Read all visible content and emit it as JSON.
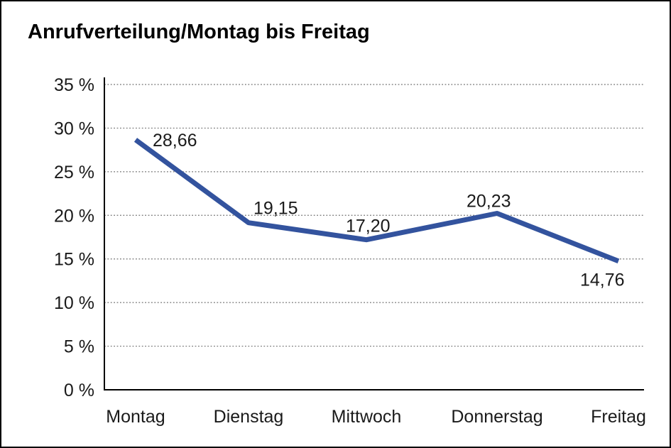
{
  "window": {
    "background": "#ffffff",
    "frame_border_color": "#000000"
  },
  "chart_data": {
    "type": "line",
    "title": "Anrufverteilung/Montag bis Freitag",
    "categories": [
      "Montag",
      "Dienstag",
      "Mittwoch",
      "Donnerstag",
      "Freitag"
    ],
    "values": [
      28.66,
      19.15,
      17.2,
      20.23,
      14.76
    ],
    "value_labels": [
      "28,66",
      "19,15",
      "17,20",
      "20,23",
      "14,76"
    ],
    "xlabel": "",
    "ylabel": "",
    "ylim": [
      0,
      35
    ],
    "ytick_step": 5,
    "ytick_labels": [
      "0 %",
      "5 %",
      "10 %",
      "15 %",
      "20 %",
      "25 %",
      "30 %",
      "35 %"
    ],
    "grid": "horizontal-dotted",
    "legend_position": "none",
    "line_color": "#33539E",
    "text_color": "#1a1a1a"
  }
}
